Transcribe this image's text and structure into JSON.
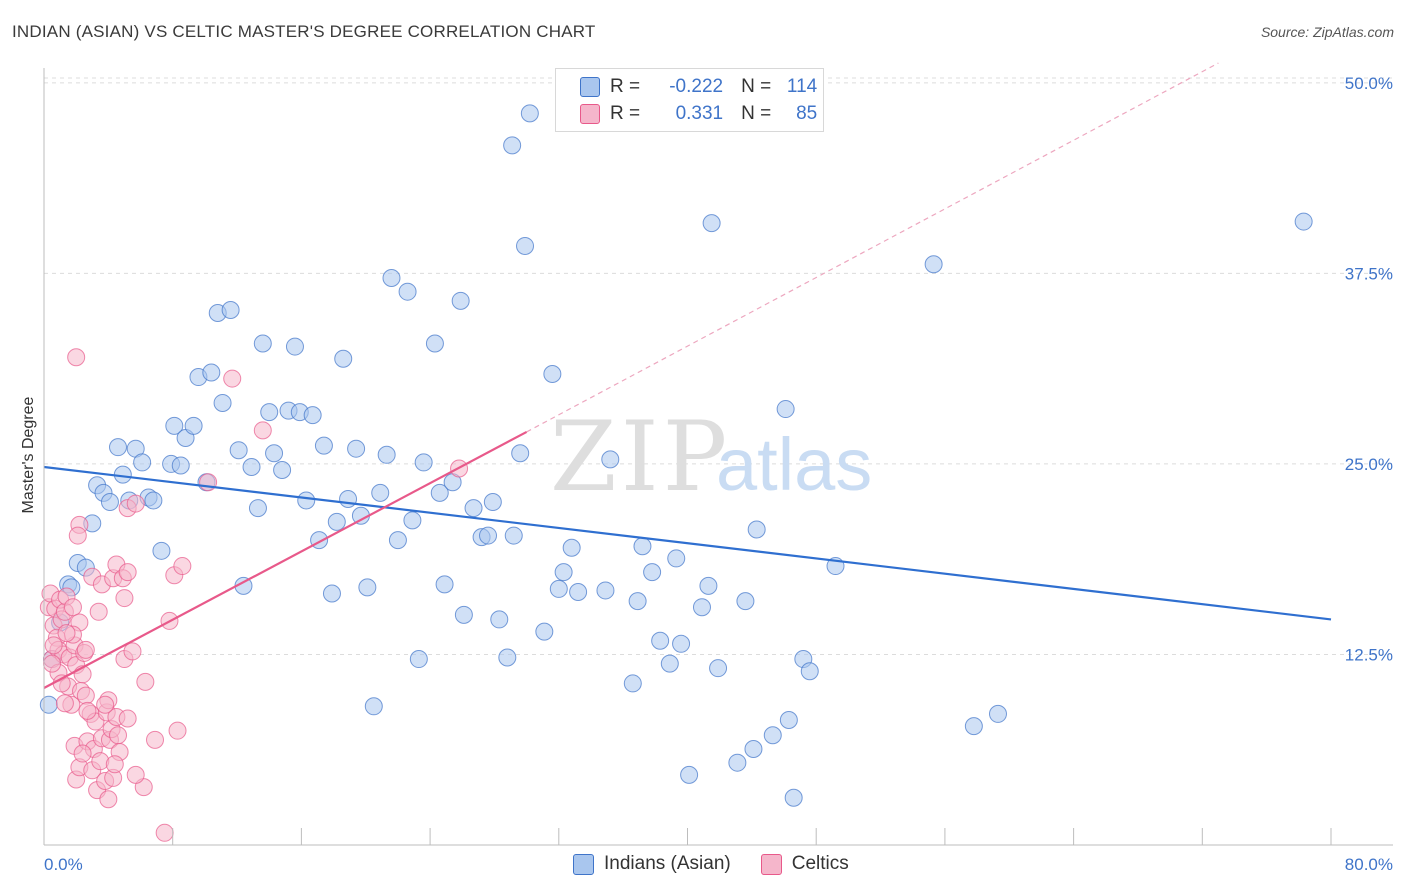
{
  "title": "INDIAN (ASIAN) VS CELTIC MASTER'S DEGREE CORRELATION CHART",
  "source": "Source: ZipAtlas.com",
  "watermark": {
    "zip": "ZIP",
    "atlas": "atlas"
  },
  "colors": {
    "blue": "#3f74c9",
    "blue_line": "#2f6fd0",
    "blue_fill": "#a9c6ee",
    "pink": "#e8598a",
    "pink_fill": "#f5b6cb"
  },
  "legend": {
    "rows": [
      {
        "r_label": "R =",
        "r_value": "-0.222",
        "n_label": "N =",
        "n_value": "114"
      },
      {
        "r_label": "R =",
        "r_value": "0.331",
        "n_label": "N =",
        "n_value": "85"
      }
    ]
  },
  "chart_data": {
    "type": "scatter",
    "title": "INDIAN (ASIAN) VS CELTIC MASTER'S DEGREE CORRELATION CHART",
    "xlabel": "",
    "ylabel": "Master's Degree",
    "xlim": [
      0,
      80
    ],
    "ylim": [
      0,
      51.5
    ],
    "x_tick_labels": [
      "0.0%",
      "80.0%"
    ],
    "y_ticks": [
      12.5,
      25.0,
      37.5,
      50.0
    ],
    "y_tick_labels": [
      "12.5%",
      "25.0%",
      "37.5%",
      "50.0%"
    ],
    "grid": true,
    "legend_position": "bottom",
    "series": [
      {
        "name": "Indians (Asian)",
        "trend": {
          "x": [
            0,
            80
          ],
          "y": [
            24.8,
            14.8
          ]
        },
        "points": [
          [
            0.3,
            9.2
          ],
          [
            0.5,
            12.2
          ],
          [
            1.0,
            14.6
          ],
          [
            1.5,
            17.1
          ],
          [
            1.7,
            16.9
          ],
          [
            2.1,
            18.5
          ],
          [
            2.6,
            18.2
          ],
          [
            3.0,
            21.1
          ],
          [
            3.3,
            23.6
          ],
          [
            3.7,
            23.1
          ],
          [
            4.1,
            22.5
          ],
          [
            4.6,
            26.1
          ],
          [
            4.9,
            24.3
          ],
          [
            5.3,
            22.6
          ],
          [
            5.7,
            26.0
          ],
          [
            6.1,
            25.1
          ],
          [
            6.5,
            22.8
          ],
          [
            6.8,
            22.6
          ],
          [
            7.3,
            19.3
          ],
          [
            7.9,
            25.0
          ],
          [
            8.1,
            27.5
          ],
          [
            8.5,
            24.9
          ],
          [
            8.8,
            26.7
          ],
          [
            9.3,
            27.5
          ],
          [
            9.6,
            30.7
          ],
          [
            10.1,
            23.8
          ],
          [
            10.4,
            31.0
          ],
          [
            11.1,
            29.0
          ],
          [
            10.8,
            34.9
          ],
          [
            11.6,
            35.1
          ],
          [
            12.1,
            25.9
          ],
          [
            12.4,
            17.0
          ],
          [
            12.9,
            24.8
          ],
          [
            13.3,
            22.1
          ],
          [
            13.6,
            32.9
          ],
          [
            14.0,
            28.4
          ],
          [
            14.3,
            25.7
          ],
          [
            14.8,
            24.6
          ],
          [
            15.2,
            28.5
          ],
          [
            15.6,
            32.7
          ],
          [
            15.9,
            28.4
          ],
          [
            16.3,
            22.6
          ],
          [
            16.7,
            28.2
          ],
          [
            17.1,
            20.0
          ],
          [
            17.4,
            26.2
          ],
          [
            17.9,
            16.5
          ],
          [
            18.2,
            21.2
          ],
          [
            18.6,
            31.9
          ],
          [
            18.9,
            22.7
          ],
          [
            19.4,
            26.0
          ],
          [
            19.7,
            21.6
          ],
          [
            20.1,
            16.9
          ],
          [
            20.5,
            9.1
          ],
          [
            20.9,
            23.1
          ],
          [
            21.3,
            25.6
          ],
          [
            21.6,
            37.2
          ],
          [
            22.0,
            20.0
          ],
          [
            22.6,
            36.3
          ],
          [
            22.9,
            21.3
          ],
          [
            23.3,
            12.2
          ],
          [
            23.6,
            25.1
          ],
          [
            24.3,
            32.9
          ],
          [
            24.6,
            23.1
          ],
          [
            24.9,
            17.1
          ],
          [
            25.4,
            23.8
          ],
          [
            25.9,
            35.7
          ],
          [
            26.1,
            15.1
          ],
          [
            26.7,
            22.1
          ],
          [
            27.2,
            20.2
          ],
          [
            27.6,
            20.3
          ],
          [
            27.9,
            22.5
          ],
          [
            28.3,
            14.8
          ],
          [
            28.8,
            12.3
          ],
          [
            29.2,
            20.3
          ],
          [
            29.6,
            25.7
          ],
          [
            29.9,
            39.3
          ],
          [
            30.2,
            48.0
          ],
          [
            29.1,
            45.9
          ],
          [
            31.1,
            14.0
          ],
          [
            31.6,
            30.9
          ],
          [
            32.0,
            16.8
          ],
          [
            32.3,
            17.9
          ],
          [
            32.8,
            19.5
          ],
          [
            33.2,
            16.6
          ],
          [
            34.9,
            16.7
          ],
          [
            35.2,
            25.3
          ],
          [
            36.6,
            10.6
          ],
          [
            36.9,
            16.0
          ],
          [
            37.2,
            19.6
          ],
          [
            37.8,
            17.9
          ],
          [
            38.3,
            13.4
          ],
          [
            38.9,
            11.9
          ],
          [
            39.3,
            18.8
          ],
          [
            39.6,
            13.2
          ],
          [
            40.1,
            4.6
          ],
          [
            40.9,
            15.6
          ],
          [
            41.3,
            17.0
          ],
          [
            41.5,
            40.8
          ],
          [
            41.9,
            11.6
          ],
          [
            43.1,
            5.4
          ],
          [
            43.6,
            16.0
          ],
          [
            44.1,
            6.3
          ],
          [
            44.3,
            20.7
          ],
          [
            45.3,
            7.2
          ],
          [
            46.3,
            8.2
          ],
          [
            46.6,
            3.1
          ],
          [
            46.1,
            28.6
          ],
          [
            47.2,
            12.2
          ],
          [
            47.6,
            11.4
          ],
          [
            49.2,
            18.3
          ],
          [
            55.3,
            38.1
          ],
          [
            57.8,
            7.8
          ],
          [
            59.3,
            8.6
          ],
          [
            78.3,
            40.9
          ]
        ]
      },
      {
        "name": "Celtics",
        "trend": {
          "x": [
            0,
            30
          ],
          "y": [
            10.3,
            27.1
          ]
        },
        "trend_extension": {
          "x": [
            30,
            73
          ],
          "y": [
            27.1,
            51.3
          ]
        },
        "points": [
          [
            0.3,
            15.6
          ],
          [
            0.4,
            16.5
          ],
          [
            0.5,
            12.2
          ],
          [
            0.6,
            14.4
          ],
          [
            0.7,
            15.5
          ],
          [
            0.8,
            13.6
          ],
          [
            0.9,
            12.8
          ],
          [
            1.0,
            16.1
          ],
          [
            1.1,
            14.8
          ],
          [
            1.2,
            12.5
          ],
          [
            1.3,
            15.3
          ],
          [
            1.4,
            16.3
          ],
          [
            1.5,
            10.4
          ],
          [
            1.6,
            12.3
          ],
          [
            1.7,
            9.2
          ],
          [
            1.8,
            15.6
          ],
          [
            1.9,
            13.1
          ],
          [
            2.0,
            11.8
          ],
          [
            2.2,
            14.6
          ],
          [
            2.3,
            10.1
          ],
          [
            2.4,
            11.2
          ],
          [
            2.5,
            12.6
          ],
          [
            2.6,
            9.8
          ],
          [
            1.9,
            6.5
          ],
          [
            2.0,
            4.3
          ],
          [
            2.2,
            5.1
          ],
          [
            2.7,
            6.8
          ],
          [
            2.9,
            8.6
          ],
          [
            3.0,
            4.9
          ],
          [
            3.1,
            6.3
          ],
          [
            3.2,
            8.1
          ],
          [
            3.3,
            3.6
          ],
          [
            3.5,
            5.5
          ],
          [
            3.6,
            7.0
          ],
          [
            3.8,
            4.2
          ],
          [
            3.9,
            8.7
          ],
          [
            4.0,
            9.5
          ],
          [
            4.1,
            6.9
          ],
          [
            4.2,
            7.6
          ],
          [
            4.3,
            4.4
          ],
          [
            4.5,
            8.4
          ],
          [
            4.6,
            7.2
          ],
          [
            4.7,
            6.1
          ],
          [
            2.2,
            21.0
          ],
          [
            2.1,
            20.3
          ],
          [
            2.0,
            32.0
          ],
          [
            1.8,
            13.8
          ],
          [
            2.6,
            12.8
          ],
          [
            3.0,
            17.6
          ],
          [
            3.4,
            15.3
          ],
          [
            3.6,
            17.1
          ],
          [
            4.3,
            17.5
          ],
          [
            4.5,
            18.4
          ],
          [
            4.9,
            17.5
          ],
          [
            5.0,
            16.2
          ],
          [
            5.0,
            12.2
          ],
          [
            5.2,
            17.9
          ],
          [
            5.5,
            12.7
          ],
          [
            5.2,
            22.1
          ],
          [
            5.7,
            22.4
          ],
          [
            6.2,
            3.8
          ],
          [
            6.3,
            10.7
          ],
          [
            6.9,
            6.9
          ],
          [
            7.5,
            0.8
          ],
          [
            7.8,
            14.7
          ],
          [
            8.1,
            17.7
          ],
          [
            8.3,
            7.5
          ],
          [
            8.6,
            18.3
          ],
          [
            10.2,
            23.8
          ],
          [
            11.7,
            30.6
          ],
          [
            13.6,
            27.2
          ],
          [
            25.8,
            24.7
          ],
          [
            2.4,
            6.0
          ],
          [
            3.8,
            9.2
          ],
          [
            4.0,
            3.0
          ],
          [
            4.4,
            5.3
          ],
          [
            5.2,
            8.3
          ],
          [
            5.7,
            4.6
          ],
          [
            2.7,
            8.8
          ],
          [
            0.9,
            11.3
          ],
          [
            1.3,
            9.3
          ],
          [
            0.6,
            13.1
          ],
          [
            0.5,
            11.9
          ],
          [
            1.1,
            10.6
          ],
          [
            1.4,
            13.9
          ]
        ]
      }
    ]
  },
  "bottom_legend": {
    "items": [
      "Indians (Asian)",
      "Celtics"
    ]
  }
}
